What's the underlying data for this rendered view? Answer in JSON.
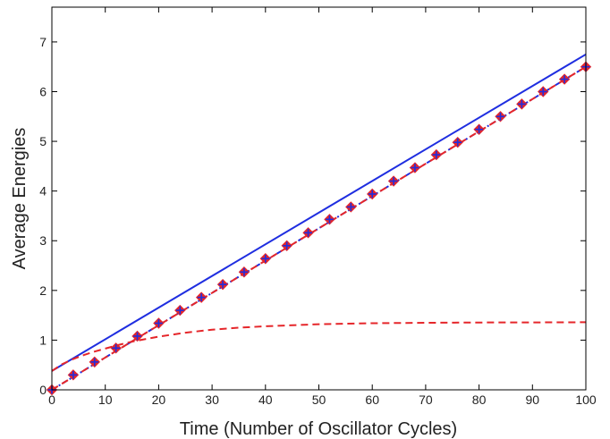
{
  "chart_data": {
    "type": "line",
    "title": "",
    "xlabel": "Time (Number of Oscillator Cycles)",
    "ylabel": "Average Energies",
    "xlim": [
      0,
      100
    ],
    "ylim": [
      0,
      7.7
    ],
    "xticks": [
      0,
      10,
      20,
      30,
      40,
      50,
      60,
      70,
      80,
      90,
      100
    ],
    "yticks": [
      0,
      1,
      2,
      3,
      4,
      5,
      6,
      7
    ],
    "grid": false,
    "legend": "none",
    "series": [
      {
        "style": "solid",
        "color": "#1f2ee0",
        "x": [
          0,
          100
        ],
        "y": [
          0.38,
          6.75
        ]
      },
      {
        "style": "dash-dot",
        "color": "#1f2ee0",
        "x": [
          0,
          100
        ],
        "y": [
          0.0,
          6.5
        ]
      },
      {
        "style": "dashed",
        "color": "#e5262a",
        "x": [
          0,
          100
        ],
        "y": [
          0.0,
          6.5
        ]
      },
      {
        "style": "dashed",
        "color": "#e5262a",
        "x": [
          0,
          2,
          4,
          6,
          8,
          10,
          12,
          15,
          20,
          25,
          30,
          35,
          40,
          50,
          60,
          70,
          80,
          90,
          100
        ],
        "y": [
          0.38,
          0.52,
          0.62,
          0.7,
          0.77,
          0.83,
          0.89,
          0.97,
          1.07,
          1.15,
          1.21,
          1.25,
          1.28,
          1.32,
          1.34,
          1.35,
          1.355,
          1.357,
          1.36
        ]
      },
      {
        "style": "markers",
        "marker": "diamond-plus",
        "color": "#e5262a",
        "marker_edge": "#1f2ee0",
        "x": [
          0,
          4,
          8,
          12,
          16,
          20,
          24,
          28,
          32,
          36,
          40,
          44,
          48,
          52,
          56,
          60,
          64,
          68,
          72,
          76,
          80,
          84,
          88,
          92,
          96,
          100
        ],
        "y": [
          0.0,
          0.3,
          0.56,
          0.84,
          1.08,
          1.34,
          1.6,
          1.86,
          2.12,
          2.37,
          2.64,
          2.9,
          3.16,
          3.43,
          3.68,
          3.94,
          4.2,
          4.47,
          4.73,
          4.98,
          5.24,
          5.5,
          5.75,
          6.0,
          6.25,
          6.5
        ]
      }
    ]
  }
}
